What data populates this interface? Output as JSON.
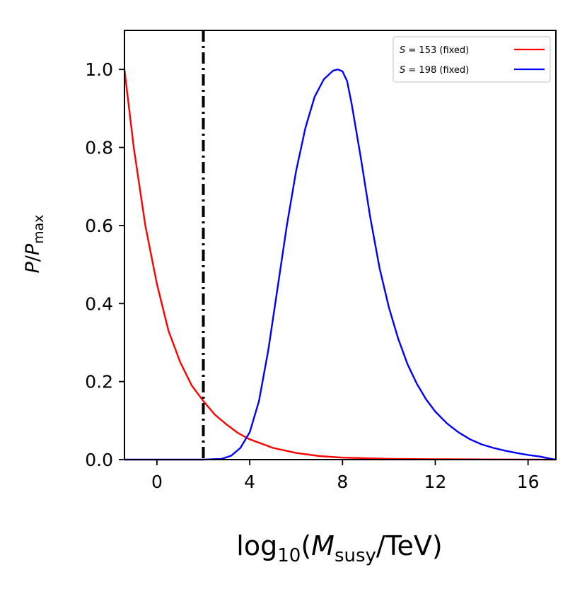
{
  "chart_data": {
    "type": "line",
    "xlabel": {
      "prefix": "log",
      "sub1": "10",
      "mid": "(",
      "italic": "M",
      "sub2": "susy",
      "suffix": "/TeV)"
    },
    "ylabel": {
      "italic1": "P",
      "slash": "/",
      "italic2": "P",
      "sub": "max"
    },
    "xlim": [
      -1.4,
      17.2
    ],
    "ylim": [
      0.0,
      1.1
    ],
    "xticks": [
      0,
      4,
      8,
      12,
      16
    ],
    "xtick_labels": [
      "0",
      "4",
      "8",
      "12",
      "16"
    ],
    "yticks": [
      0.0,
      0.2,
      0.4,
      0.6,
      0.8,
      1.0
    ],
    "ytick_labels": [
      "0.0",
      "0.2",
      "0.4",
      "0.6",
      "0.8",
      "1.0"
    ],
    "vline": {
      "x": 2.0,
      "style": "dash-dot",
      "color": "#000000"
    },
    "legend_position": "top-right",
    "series": [
      {
        "name": "S = 153 (fixed)",
        "label_italic": "S",
        "label_rest": " = 153 (fixed)",
        "color": "#ff0000",
        "x": [
          -1.4,
          -1.0,
          -0.5,
          0.0,
          0.5,
          1.0,
          1.5,
          2.0,
          2.5,
          3.0,
          3.5,
          4.0,
          5.0,
          6.0,
          7.0,
          8.0,
          10.0,
          12.0,
          14.0,
          16.0,
          17.2
        ],
        "y": [
          1.0,
          0.8,
          0.6,
          0.45,
          0.33,
          0.25,
          0.19,
          0.15,
          0.115,
          0.09,
          0.068,
          0.052,
          0.03,
          0.017,
          0.009,
          0.005,
          0.002,
          0.001,
          0.0005,
          0.0002,
          0.0
        ]
      },
      {
        "name": "S = 198 (fixed)",
        "label_italic": "S",
        "label_rest": " = 198 (fixed)",
        "color": "#0000ff",
        "x": [
          -1.4,
          2.0,
          2.8,
          3.2,
          3.6,
          4.0,
          4.4,
          4.8,
          5.2,
          5.6,
          6.0,
          6.4,
          6.8,
          7.2,
          7.6,
          7.8,
          8.0,
          8.2,
          8.4,
          8.8,
          9.2,
          9.6,
          10.0,
          10.4,
          10.8,
          11.2,
          11.6,
          12.0,
          12.5,
          13.0,
          13.5,
          14.0,
          14.5,
          15.0,
          15.5,
          16.0,
          16.5,
          17.0,
          17.2
        ],
        "y": [
          0.0,
          0.0,
          0.002,
          0.01,
          0.03,
          0.07,
          0.15,
          0.28,
          0.44,
          0.6,
          0.74,
          0.85,
          0.93,
          0.975,
          0.997,
          1.0,
          0.995,
          0.97,
          0.91,
          0.77,
          0.62,
          0.49,
          0.39,
          0.31,
          0.245,
          0.195,
          0.155,
          0.123,
          0.093,
          0.07,
          0.052,
          0.039,
          0.03,
          0.023,
          0.017,
          0.012,
          0.008,
          0.002,
          0.0
        ]
      }
    ]
  }
}
